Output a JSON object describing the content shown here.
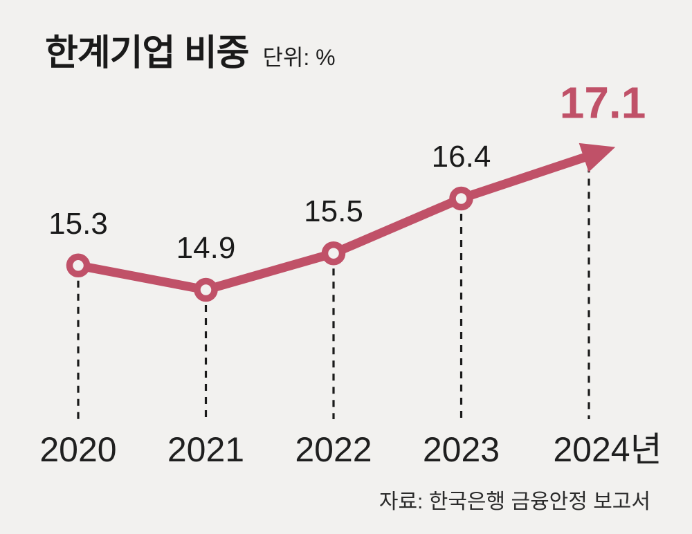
{
  "title": {
    "text": "한계기업 비중",
    "unit_label": "단위: %"
  },
  "source": "자료: 한국은행 금융안정 보고서",
  "colors": {
    "accent": "#c05168",
    "marker_fill": "#f2f1ef",
    "text": "#1a1a1a",
    "leader": "#1a1a1a",
    "background": "#f2f1ef"
  },
  "chart_data": {
    "type": "line",
    "title": "한계기업 비중",
    "unit": "%",
    "categories": [
      "2020",
      "2021",
      "2022",
      "2023",
      "2024년"
    ],
    "values": [
      15.3,
      14.9,
      15.5,
      16.4,
      17.1
    ],
    "value_labels": [
      "15.3",
      "14.9",
      "15.5",
      "16.4",
      "17.1"
    ],
    "highlight_index": 4,
    "ylim": [
      14.5,
      17.5
    ],
    "grid": "off",
    "legend": "none",
    "style": {
      "marker": "open-circle",
      "last_segment": "arrow",
      "leader_lines": "dashed-vertical"
    }
  }
}
